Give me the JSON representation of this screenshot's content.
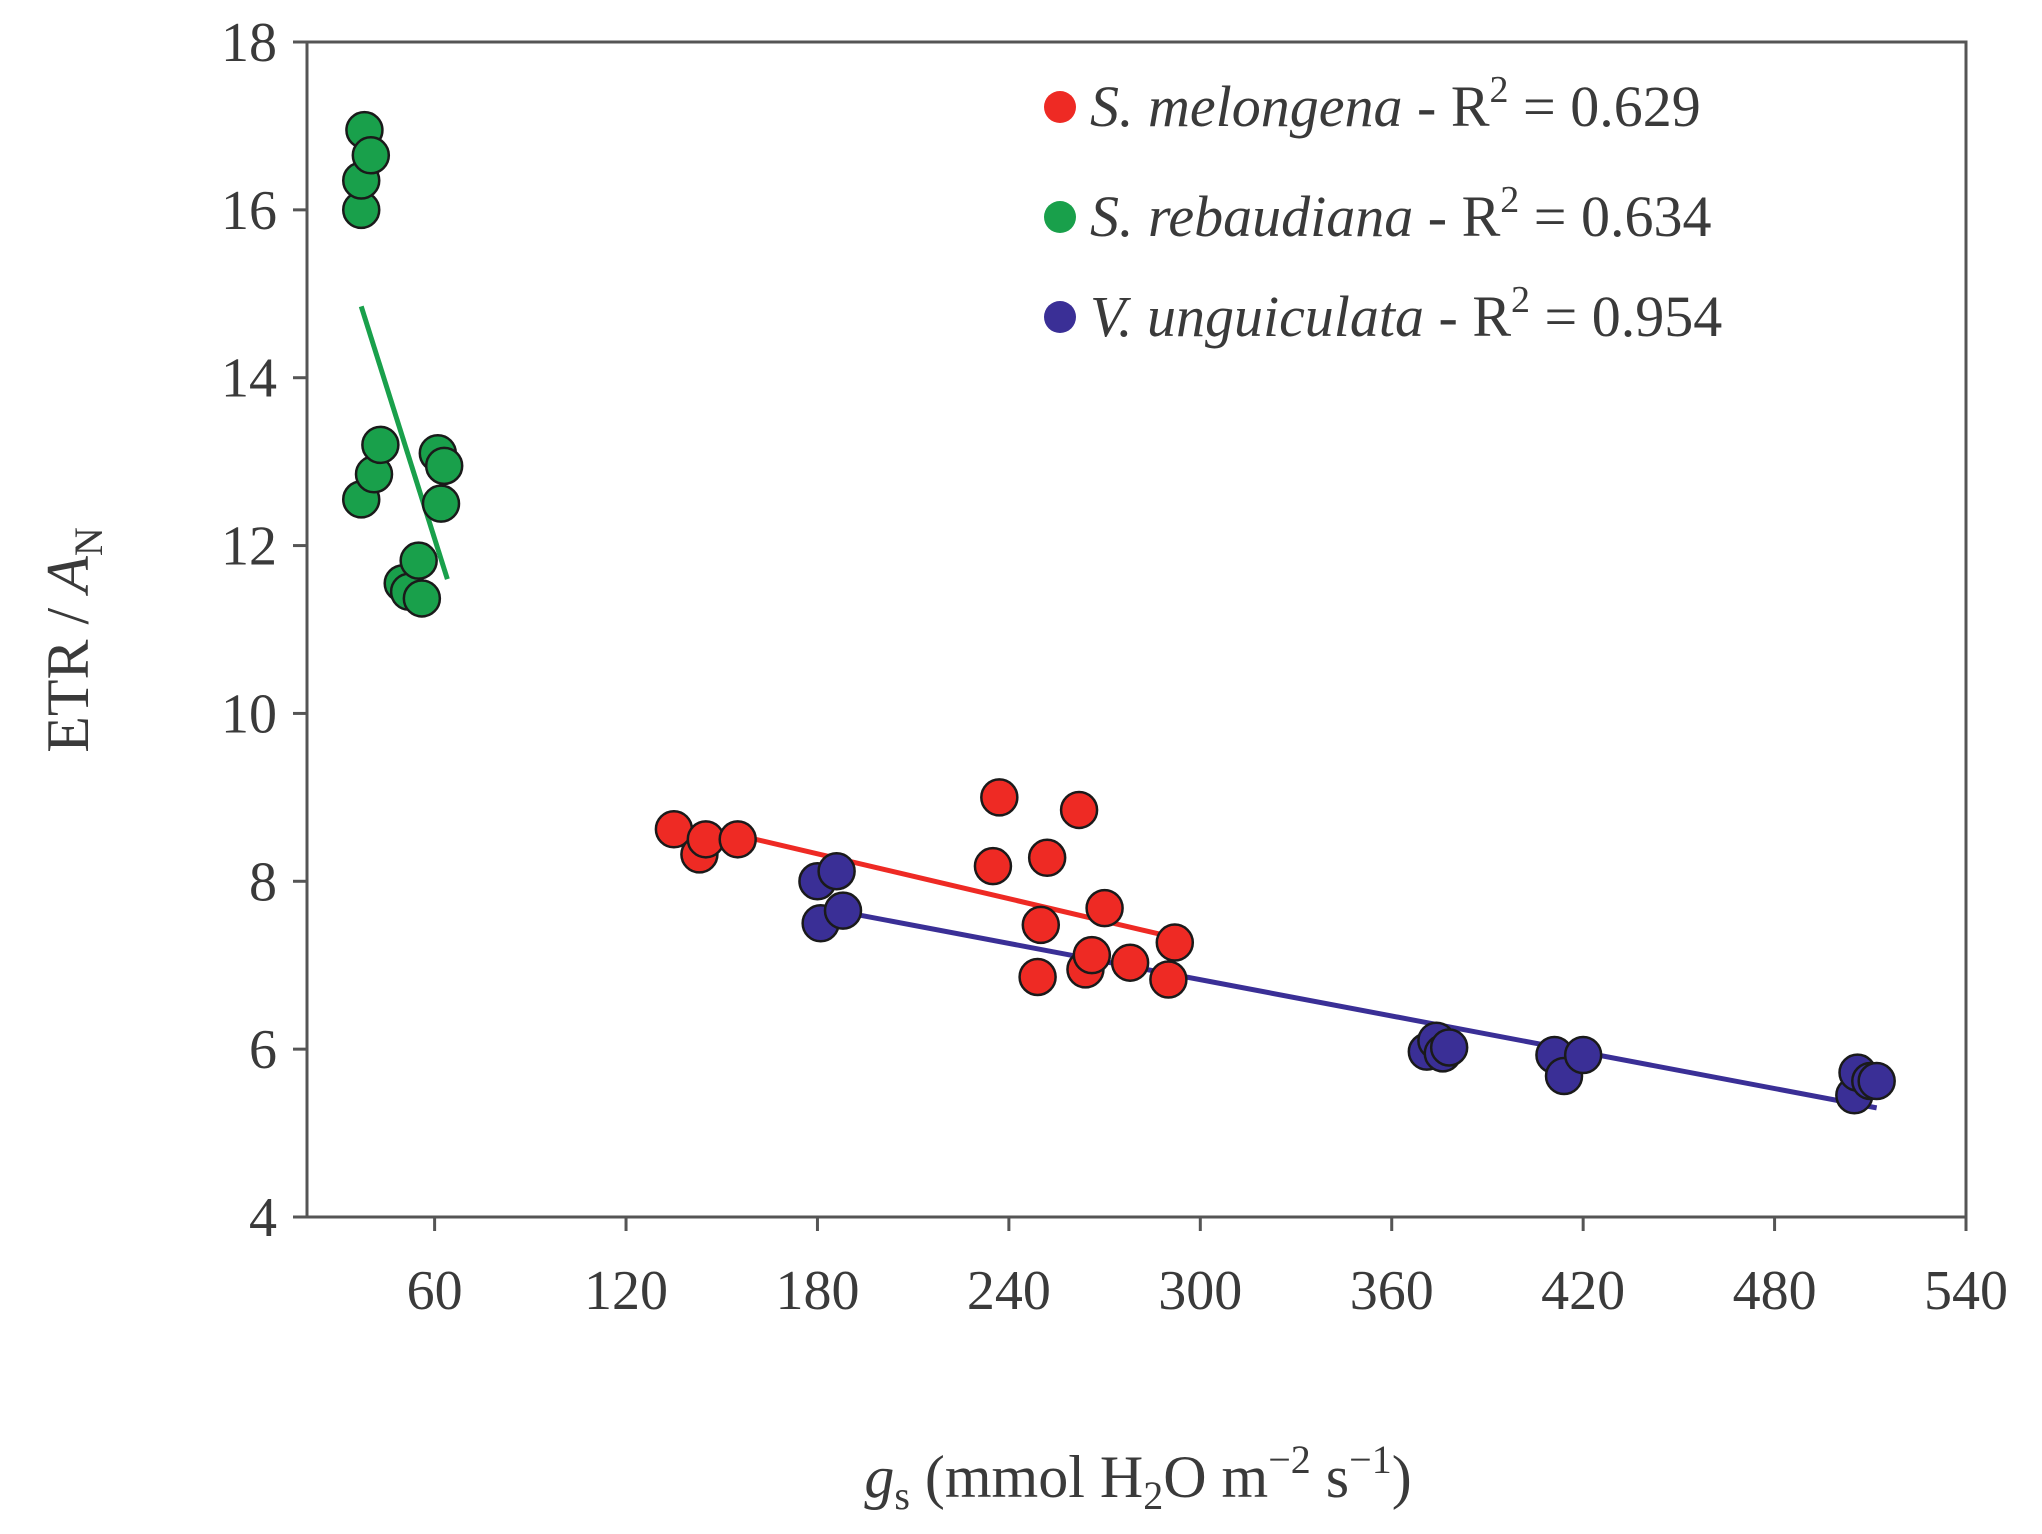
{
  "chart_data": {
    "type": "scatter",
    "xlabel": {
      "g": "g",
      "sub": "s",
      "pre": " (mmol H",
      "sub2": "2",
      "mid": "O m",
      "sup1": "−2",
      "mid2": " s",
      "sup2": "−1",
      "end": ")"
    },
    "ylabel": {
      "pre": "ETR / ",
      "A": "A",
      "sub": "N"
    },
    "xlim": [
      20,
      540
    ],
    "ylim": [
      4,
      18
    ],
    "xticks": [
      60,
      120,
      180,
      240,
      300,
      360,
      420,
      480,
      540
    ],
    "yticks": [
      4,
      6,
      8,
      10,
      12,
      14,
      16,
      18
    ],
    "legend_position": "top-right",
    "series": [
      {
        "name": "S. melongena",
        "r2_text": " - R",
        "r2_sup": "2",
        "r2_value": " = 0.629",
        "color": "#ee2a24",
        "points": [
          [
            135,
            8.62
          ],
          [
            143,
            8.32
          ],
          [
            145,
            8.5
          ],
          [
            155,
            8.5
          ],
          [
            235,
            8.18
          ],
          [
            237,
            9.0
          ],
          [
            249,
            6.86
          ],
          [
            250,
            7.48
          ],
          [
            252,
            8.28
          ],
          [
            262,
            8.85
          ],
          [
            264,
            6.95
          ],
          [
            266,
            7.12
          ],
          [
            270,
            7.68
          ],
          [
            278,
            7.03
          ],
          [
            290,
            6.83
          ],
          [
            292,
            7.27
          ]
        ],
        "fit": [
          [
            155,
            8.55
          ],
          [
            293,
            7.32
          ]
        ]
      },
      {
        "name": "S. rebaudiana",
        "r2_text": " - R",
        "r2_sup": "2",
        "r2_value": " = 0.634",
        "color": "#19a04b",
        "points": [
          [
            37,
            12.55
          ],
          [
            37,
            16.0
          ],
          [
            37,
            16.35
          ],
          [
            38,
            16.95
          ],
          [
            40,
            16.65
          ],
          [
            41,
            12.85
          ],
          [
            43,
            13.2
          ],
          [
            50,
            11.55
          ],
          [
            52,
            11.45
          ],
          [
            55,
            11.82
          ],
          [
            56,
            11.37
          ],
          [
            61,
            13.1
          ],
          [
            62,
            12.5
          ],
          [
            63,
            12.95
          ]
        ],
        "fit": [
          [
            37,
            14.85
          ],
          [
            64,
            11.6
          ]
        ]
      },
      {
        "name": "V. unguiculata",
        "r2_text": " - R",
        "r2_sup": "2",
        "r2_value": " = 0.954",
        "color": "#3a2f96",
        "points": [
          [
            180,
            8.0
          ],
          [
            181,
            7.5
          ],
          [
            186,
            8.12
          ],
          [
            188,
            7.65
          ],
          [
            371,
            5.97
          ],
          [
            374,
            6.1
          ],
          [
            376,
            5.95
          ],
          [
            378,
            6.02
          ],
          [
            411,
            5.93
          ],
          [
            414,
            5.68
          ],
          [
            420,
            5.93
          ],
          [
            505,
            5.45
          ],
          [
            506,
            5.72
          ],
          [
            510,
            5.62
          ],
          [
            512,
            5.62
          ]
        ],
        "fit": [
          [
            190,
            7.62
          ],
          [
            512,
            5.3
          ]
        ]
      }
    ]
  }
}
